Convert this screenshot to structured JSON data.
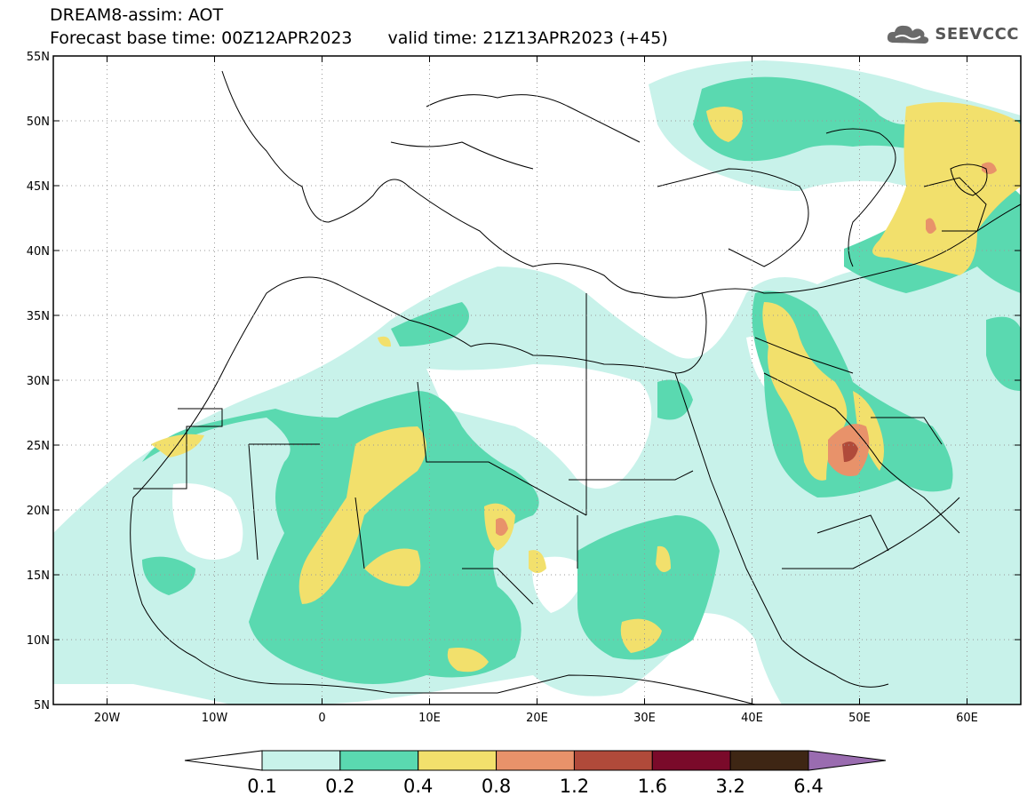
{
  "title": {
    "line1": "DREAM8-assim: AOT",
    "base_time": "Forecast base time: 00Z12APR2023",
    "valid_time": "valid time: 21Z13APR2023 (+45)"
  },
  "logo": {
    "text": "SEEVCCC",
    "icon": "cloud-icon"
  },
  "map": {
    "lon_range": [
      -25,
      65
    ],
    "lat_range": [
      5,
      55
    ],
    "lat_ticks": [
      {
        "value": 55,
        "label": "55N"
      },
      {
        "value": 50,
        "label": "50N"
      },
      {
        "value": 45,
        "label": "45N"
      },
      {
        "value": 40,
        "label": "40N"
      },
      {
        "value": 35,
        "label": "35N"
      },
      {
        "value": 30,
        "label": "30N"
      },
      {
        "value": 25,
        "label": "25N"
      },
      {
        "value": 20,
        "label": "20N"
      },
      {
        "value": 15,
        "label": "15N"
      },
      {
        "value": 10,
        "label": "10N"
      },
      {
        "value": 5,
        "label": "5N"
      }
    ],
    "lon_ticks": [
      {
        "value": -20,
        "label": "20W"
      },
      {
        "value": -10,
        "label": "10W"
      },
      {
        "value": 0,
        "label": "0"
      },
      {
        "value": 10,
        "label": "10E"
      },
      {
        "value": 20,
        "label": "20E"
      },
      {
        "value": 30,
        "label": "30E"
      },
      {
        "value": 40,
        "label": "40E"
      },
      {
        "value": 50,
        "label": "50E"
      },
      {
        "value": 60,
        "label": "60E"
      }
    ],
    "grid": true
  },
  "colorbar": {
    "levels": [
      "0.1",
      "0.2",
      "0.4",
      "0.8",
      "1.2",
      "1.6",
      "3.2",
      "6.4"
    ],
    "colors": [
      "#ffffff",
      "#c8f2ea",
      "#5ad9b0",
      "#f2e06c",
      "#e8926a",
      "#b04a3a",
      "#7a0a2a",
      "#3e2614",
      "#9a6cb0"
    ]
  }
}
